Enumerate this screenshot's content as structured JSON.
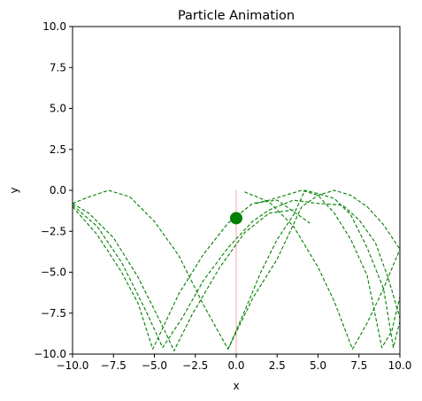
{
  "chart_data": {
    "type": "line",
    "title": "Particle Animation",
    "xlabel": "x",
    "ylabel": "y",
    "xlim": [
      -10,
      10
    ],
    "ylim": [
      -10,
      10
    ],
    "x_ticks": [
      -10,
      -7.5,
      -5,
      -2.5,
      0,
      2.5,
      5,
      7.5,
      10
    ],
    "y_ticks": [
      -10,
      -7.5,
      -5,
      -2.5,
      0,
      2.5,
      5,
      7.5,
      10
    ],
    "x_tick_labels": [
      "−10.0",
      "−7.5",
      "−5.0",
      "−2.5",
      "0.0",
      "2.5",
      "5.0",
      "7.5",
      "10.0"
    ],
    "y_tick_labels": [
      "−10.0",
      "−7.5",
      "−5.0",
      "−2.5",
      "0.0",
      "2.5",
      "5.0",
      "7.5",
      "10.0"
    ],
    "grid": false,
    "colors": {
      "trajectory": "#008000",
      "particle": "#008000",
      "marker_line": "#ffc0cb"
    },
    "vertical_line": {
      "x": 0,
      "y": [
        -10,
        0
      ]
    },
    "particle": {
      "x": 0.0,
      "y": -1.7
    },
    "trajectories": [
      {
        "points": [
          [
            -10,
            -0.9
          ],
          [
            -8.5,
            -2.2
          ],
          [
            -7,
            -4.4
          ],
          [
            -5.5,
            -7.4
          ],
          [
            -4.5,
            -9.6
          ],
          [
            -3.3,
            -7.8
          ],
          [
            -2,
            -5.5
          ],
          [
            -0.5,
            -3.5
          ],
          [
            1,
            -1.9
          ],
          [
            2,
            -1.2
          ]
        ]
      },
      {
        "points": [
          [
            -10,
            -0.8
          ],
          [
            -9,
            -1.4
          ],
          [
            -7.5,
            -2.9
          ],
          [
            -6,
            -5.3
          ],
          [
            -4.5,
            -8.3
          ],
          [
            -3.8,
            -9.8
          ],
          [
            -2.7,
            -7.6
          ],
          [
            -1,
            -4.7
          ],
          [
            0.5,
            -2.6
          ],
          [
            2,
            -1.4
          ],
          [
            3.5,
            -1.2
          ]
        ]
      },
      {
        "points": [
          [
            -10,
            -1.0
          ],
          [
            -8.5,
            -2.7
          ],
          [
            -7,
            -5.0
          ],
          [
            -6,
            -6.9
          ],
          [
            -5.1,
            -9.7
          ],
          [
            -3.5,
            -6.3
          ],
          [
            -2,
            -3.9
          ],
          [
            -0.5,
            -2.0
          ],
          [
            1,
            -0.8
          ],
          [
            2.5,
            -0.6
          ],
          [
            4.5,
            -2.0
          ]
        ]
      },
      {
        "points": [
          [
            -10,
            -0.8
          ],
          [
            -9,
            -0.4
          ],
          [
            -7.8,
            0.0
          ],
          [
            -6.5,
            -0.4
          ],
          [
            -5,
            -1.9
          ],
          [
            -3.5,
            -4.0
          ],
          [
            -2,
            -7.0
          ],
          [
            -0.5,
            -9.7
          ],
          [
            1,
            -6.6
          ],
          [
            2.5,
            -4.2
          ],
          [
            4,
            -1.0
          ],
          [
            5,
            -0.3
          ],
          [
            6,
            0.0
          ],
          [
            7,
            -0.3
          ],
          [
            8,
            -1.0
          ],
          [
            9,
            -2.1
          ],
          [
            10,
            -3.6
          ]
        ]
      },
      {
        "points": [
          [
            -0.5,
            -9.7
          ],
          [
            0.5,
            -7.4
          ],
          [
            1.5,
            -5.0
          ],
          [
            2.5,
            -3.0
          ],
          [
            3.5,
            -1.5
          ],
          [
            4.2,
            0.0
          ],
          [
            5,
            -0.2
          ],
          [
            6,
            -0.5
          ],
          [
            7,
            -1.5
          ],
          [
            8,
            -3.5
          ],
          [
            9.0,
            -6.0
          ],
          [
            9.6,
            -9.6
          ],
          [
            10,
            -8.0
          ]
        ]
      },
      {
        "points": [
          [
            0.5,
            -0.1
          ],
          [
            2,
            -0.7
          ],
          [
            3.5,
            -2.2
          ],
          [
            5,
            -4.7
          ],
          [
            6,
            -6.8
          ],
          [
            7.1,
            -9.7
          ],
          [
            8,
            -8.1
          ],
          [
            9,
            -6.0
          ],
          [
            10,
            -3.6
          ]
        ]
      },
      {
        "points": [
          [
            1.2,
            -0.8
          ],
          [
            2,
            -0.6
          ],
          [
            3,
            -0.3
          ],
          [
            4,
            0.0
          ],
          [
            5,
            -0.3
          ],
          [
            6,
            -1.4
          ],
          [
            7,
            -3.0
          ],
          [
            8,
            -5.2
          ],
          [
            8.9,
            -9.6
          ],
          [
            9.5,
            -8.6
          ],
          [
            10,
            -6.5
          ]
        ]
      },
      {
        "points": [
          [
            2,
            -1.2
          ],
          [
            3.5,
            -0.6
          ],
          [
            5,
            -0.8
          ],
          [
            6.5,
            -0.9
          ],
          [
            7.5,
            -1.8
          ],
          [
            8.5,
            -3.2
          ],
          [
            9.3,
            -5.4
          ],
          [
            10,
            -7.8
          ]
        ]
      }
    ]
  }
}
